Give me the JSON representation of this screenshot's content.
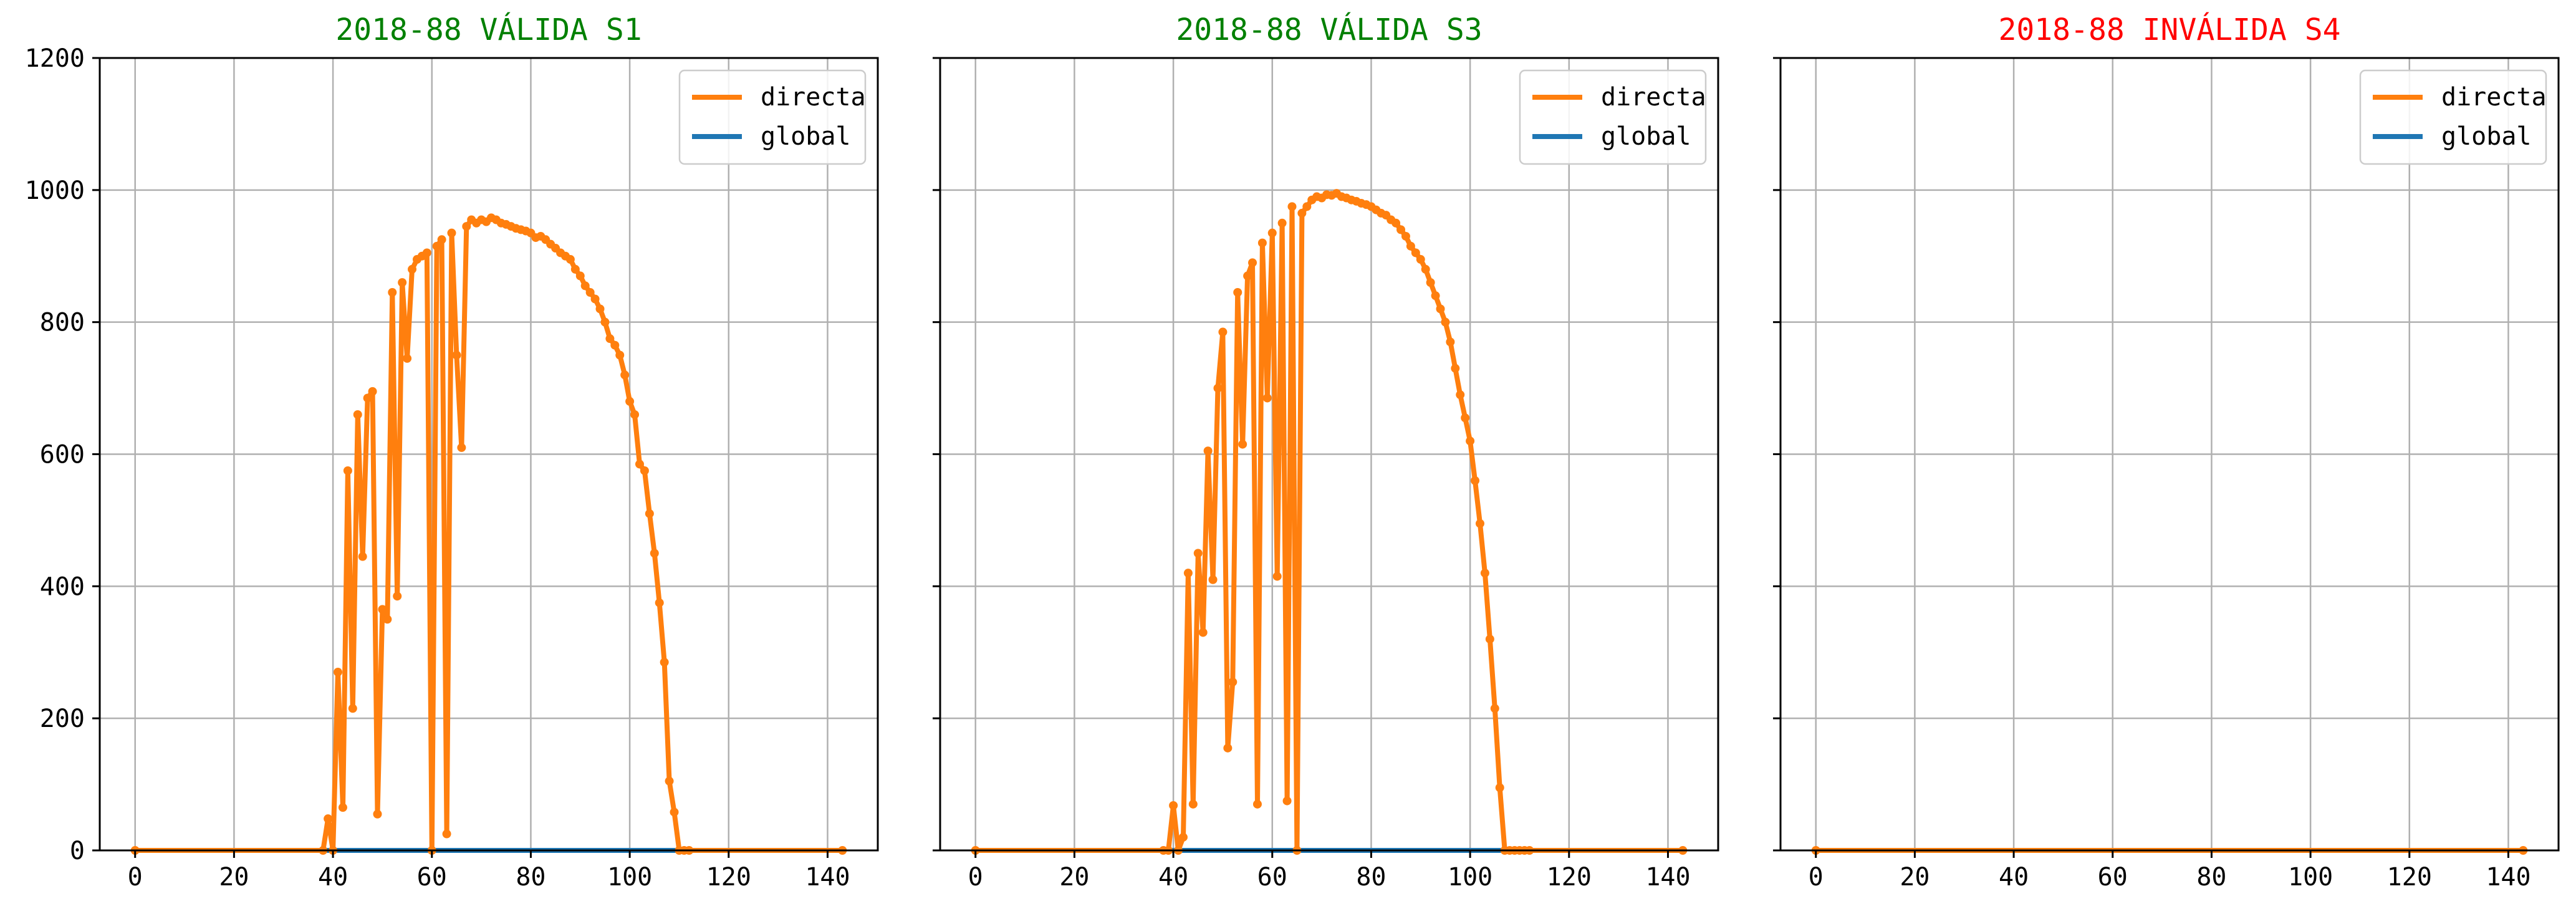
{
  "chart_data": [
    {
      "type": "line",
      "title": "2018-88 VÁLIDA S1",
      "title_color": "#008000",
      "xlim": [
        -7.15,
        150.15
      ],
      "ylim": [
        0,
        1200
      ],
      "xticks": [
        0,
        20,
        40,
        60,
        80,
        100,
        120,
        140
      ],
      "yticks": [
        0,
        200,
        400,
        600,
        800,
        1000,
        1200
      ],
      "show_ytick_labels": true,
      "grid": true,
      "legend_position": "upper right",
      "series": [
        {
          "name": "directa",
          "color": "#ff7f0e",
          "markers": true,
          "x": [
            0,
            38,
            39,
            40,
            41,
            42,
            43,
            44,
            45,
            46,
            47,
            48,
            49,
            50,
            51,
            52,
            53,
            54,
            55,
            56,
            57,
            58,
            59,
            60,
            61,
            62,
            63,
            64,
            65,
            66,
            67,
            68,
            69,
            70,
            71,
            72,
            73,
            74,
            75,
            76,
            77,
            78,
            79,
            80,
            81,
            82,
            83,
            84,
            85,
            86,
            87,
            88,
            89,
            90,
            91,
            92,
            93,
            94,
            95,
            96,
            97,
            98,
            99,
            100,
            101,
            102,
            103,
            104,
            105,
            106,
            107,
            108,
            109,
            110,
            111,
            112,
            143
          ],
          "y": [
            0,
            0,
            48,
            0,
            270,
            65,
            575,
            215,
            660,
            445,
            685,
            695,
            55,
            365,
            350,
            845,
            385,
            860,
            745,
            880,
            895,
            900,
            905,
            0,
            915,
            925,
            25,
            935,
            750,
            610,
            945,
            955,
            950,
            955,
            952,
            958,
            955,
            950,
            948,
            945,
            942,
            940,
            938,
            935,
            928,
            930,
            925,
            918,
            912,
            905,
            900,
            895,
            880,
            870,
            855,
            845,
            835,
            820,
            800,
            775,
            765,
            750,
            720,
            680,
            660,
            585,
            575,
            510,
            450,
            375,
            285,
            105,
            58,
            0,
            0,
            0,
            0
          ]
        },
        {
          "name": "global",
          "color": "#1f77b4",
          "markers": false,
          "x": [
            0,
            143
          ],
          "y": [
            0,
            0
          ]
        }
      ]
    },
    {
      "type": "line",
      "title": "2018-88 VÁLIDA S3",
      "title_color": "#008000",
      "xlim": [
        -7.15,
        150.15
      ],
      "ylim": [
        0,
        1200
      ],
      "xticks": [
        0,
        20,
        40,
        60,
        80,
        100,
        120,
        140
      ],
      "yticks": [
        0,
        200,
        400,
        600,
        800,
        1000,
        1200
      ],
      "show_ytick_labels": false,
      "grid": true,
      "legend_position": "upper right",
      "series": [
        {
          "name": "directa",
          "color": "#ff7f0e",
          "markers": true,
          "x": [
            0,
            38,
            39,
            40,
            41,
            42,
            43,
            44,
            45,
            46,
            47,
            48,
            49,
            50,
            51,
            52,
            53,
            54,
            55,
            56,
            57,
            58,
            59,
            60,
            61,
            62,
            63,
            64,
            65,
            66,
            67,
            68,
            69,
            70,
            71,
            72,
            73,
            74,
            75,
            76,
            77,
            78,
            79,
            80,
            81,
            82,
            83,
            84,
            85,
            86,
            87,
            88,
            89,
            90,
            91,
            92,
            93,
            94,
            95,
            96,
            97,
            98,
            99,
            100,
            101,
            102,
            103,
            104,
            105,
            106,
            107,
            108,
            109,
            110,
            111,
            112,
            143
          ],
          "y": [
            0,
            0,
            0,
            68,
            0,
            20,
            420,
            70,
            450,
            330,
            605,
            410,
            700,
            785,
            155,
            255,
            845,
            615,
            870,
            890,
            70,
            920,
            685,
            935,
            415,
            950,
            75,
            975,
            0,
            965,
            975,
            985,
            990,
            988,
            993,
            992,
            995,
            990,
            988,
            985,
            983,
            980,
            978,
            975,
            970,
            965,
            962,
            955,
            950,
            940,
            930,
            915,
            905,
            895,
            880,
            860,
            840,
            820,
            800,
            770,
            730,
            690,
            655,
            620,
            560,
            495,
            420,
            320,
            215,
            95,
            0,
            0,
            0,
            0,
            0,
            0,
            0
          ]
        },
        {
          "name": "global",
          "color": "#1f77b4",
          "markers": false,
          "x": [
            0,
            143
          ],
          "y": [
            0,
            0
          ]
        }
      ]
    },
    {
      "type": "line",
      "title": "2018-88 INVÁLIDA S4",
      "title_color": "#ff0000",
      "xlim": [
        -7.15,
        150.15
      ],
      "ylim": [
        0,
        1200
      ],
      "xticks": [
        0,
        20,
        40,
        60,
        80,
        100,
        120,
        140
      ],
      "yticks": [
        0,
        200,
        400,
        600,
        800,
        1000,
        1200
      ],
      "show_ytick_labels": false,
      "grid": true,
      "legend_position": "upper right",
      "series": [
        {
          "name": "directa",
          "color": "#ff7f0e",
          "markers": true,
          "x": [
            0,
            143
          ],
          "y": [
            0,
            0
          ]
        },
        {
          "name": "global",
          "color": "#1f77b4",
          "markers": false,
          "x": [
            0,
            143
          ],
          "y": [
            0,
            0
          ]
        }
      ]
    }
  ]
}
